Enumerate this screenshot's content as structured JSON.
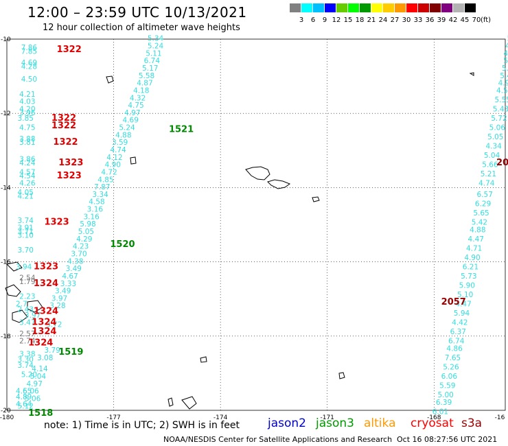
{
  "title": "12:00 – 23:59 UTC 10/13/2021",
  "subtitle": "12 hour collection of altimeter wave heights",
  "legend": {
    "labels": [
      "3",
      "6",
      "9",
      "12",
      "15",
      "18",
      "21",
      "24",
      "27",
      "30",
      "33",
      "36",
      "39",
      "42",
      "45",
      "70"
    ],
    "unit": "(ft)",
    "colors": [
      "#808080",
      "#00ffff",
      "#00bfff",
      "#0000ff",
      "#66cc00",
      "#00ff00",
      "#009900",
      "#ffff00",
      "#ffcc00",
      "#ff9900",
      "#ff0000",
      "#cc0000",
      "#800000",
      "#800080",
      "#b3b3b3",
      "#000000"
    ]
  },
  "axes": {
    "lon_labels": [
      "-180",
      "-177",
      "-174",
      "-171",
      "-168",
      "-16"
    ],
    "lat_labels": [
      "-10",
      "-12",
      "-14",
      "-16",
      "-18",
      "-20"
    ]
  },
  "note": "note:  1) Time is in UTC; 2) SWH is in feet",
  "satellites": [
    {
      "name": "jason2",
      "color": "#0000cc"
    },
    {
      "name": "jason3",
      "color": "#009900"
    },
    {
      "name": "altika",
      "color": "#ff9900"
    },
    {
      "name": "cryosat",
      "color": "#ff0000"
    },
    {
      "name": "s3a",
      "color": "#990000"
    }
  ],
  "footer_left": "NOAA/NESDIS Center for Satellite Applications and Research",
  "footer_right": "Oct 16 08:27:56 UTC 2021",
  "track_colors": {
    "swh": "#33dddd",
    "swh_gray": "#777777",
    "s3a": "#e00000",
    "jason3": "#008800",
    "s3a_dark": "#990000"
  },
  "pass_labels": [
    {
      "text": "1322",
      "color": "s3a",
      "lon": -178.6,
      "lat": -10.35
    },
    {
      "text": "1322",
      "color": "s3a",
      "lon": -178.75,
      "lat": -12.2
    },
    {
      "text": "1322",
      "color": "s3a",
      "lon": -178.75,
      "lat": -12.4
    },
    {
      "text": "1322",
      "color": "s3a",
      "lon": -178.7,
      "lat": -12.85
    },
    {
      "text": "1323",
      "color": "s3a",
      "lon": -178.55,
      "lat": -13.4
    },
    {
      "text": "1323",
      "color": "s3a",
      "lon": -178.6,
      "lat": -13.75
    },
    {
      "text": "1323",
      "color": "s3a",
      "lon": -178.95,
      "lat": -15.0
    },
    {
      "text": "1323",
      "color": "s3a",
      "lon": -179.25,
      "lat": -16.2
    },
    {
      "text": "1324",
      "color": "s3a",
      "lon": -179.25,
      "lat": -16.65
    },
    {
      "text": "1324",
      "color": "s3a",
      "lon": -179.25,
      "lat": -17.4
    },
    {
      "text": "1324",
      "color": "s3a",
      "lon": -179.3,
      "lat": -17.7
    },
    {
      "text": "1324",
      "color": "s3a",
      "lon": -179.3,
      "lat": -17.95
    },
    {
      "text": "1324",
      "color": "s3a",
      "lon": -179.4,
      "lat": -18.25
    },
    {
      "text": "1521",
      "color": "jason3",
      "lon": -175.45,
      "lat": -12.5
    },
    {
      "text": "1520",
      "color": "jason3",
      "lon": -177.1,
      "lat": -15.6
    },
    {
      "text": "1519",
      "color": "jason3",
      "lon": -178.55,
      "lat": -18.5
    },
    {
      "text": "1518",
      "color": "jason3",
      "lon": -179.4,
      "lat": -20.15
    },
    {
      "text": "2057",
      "color": "s3a_dark",
      "lon": -167.8,
      "lat": -17.15
    },
    {
      "text": "20",
      "color": "s3a_dark",
      "lon": -166.25,
      "lat": -13.4
    }
  ],
  "swh_tracks": [
    {
      "name": "jason3-pass-1521",
      "values": [
        {
          "v": "5.34",
          "lon": -176.05,
          "lat": -10.05
        },
        {
          "v": "5.24",
          "lon": -176.05,
          "lat": -10.25
        },
        {
          "v": "5.11",
          "lon": -176.1,
          "lat": -10.45
        },
        {
          "v": "6.74",
          "lon": -176.15,
          "lat": -10.65
        },
        {
          "v": "5.17",
          "lon": -176.2,
          "lat": -10.85
        },
        {
          "v": "5.58",
          "lon": -176.3,
          "lat": -11.05
        },
        {
          "v": "4.87",
          "lon": -176.35,
          "lat": -11.25
        },
        {
          "v": "4.18",
          "lon": -176.45,
          "lat": -11.45
        },
        {
          "v": "4.32",
          "lon": -176.55,
          "lat": -11.65
        },
        {
          "v": "4.75",
          "lon": -176.6,
          "lat": -11.85
        },
        {
          "v": "4.97",
          "lon": -176.7,
          "lat": -12.05
        },
        {
          "v": "4.69",
          "lon": -176.75,
          "lat": -12.25
        },
        {
          "v": "5.24",
          "lon": -176.85,
          "lat": -12.45
        },
        {
          "v": "4.88",
          "lon": -176.95,
          "lat": -12.65
        },
        {
          "v": "3.59",
          "lon": -177.05,
          "lat": -12.85
        },
        {
          "v": "4.74",
          "lon": -177.1,
          "lat": -13.05
        },
        {
          "v": "4.12",
          "lon": -177.2,
          "lat": -13.25
        },
        {
          "v": "4.90",
          "lon": -177.25,
          "lat": -13.45
        },
        {
          "v": "4.72",
          "lon": -177.35,
          "lat": -13.65
        },
        {
          "v": "4.85",
          "lon": -177.45,
          "lat": -13.85
        },
        {
          "v": "7.87",
          "lon": -177.55,
          "lat": -14.05
        },
        {
          "v": "3.34",
          "lon": -177.6,
          "lat": -14.25
        },
        {
          "v": "4.58",
          "lon": -177.7,
          "lat": -14.45
        },
        {
          "v": "3.16",
          "lon": -177.75,
          "lat": -14.65
        },
        {
          "v": "3.16",
          "lon": -177.85,
          "lat": -14.85
        }
      ]
    },
    {
      "name": "jason3-pass-1520",
      "values": [
        {
          "v": "5.98",
          "lon": -177.95,
          "lat": -15.05
        },
        {
          "v": "5.05",
          "lon": -178.0,
          "lat": -15.25
        },
        {
          "v": "4.29",
          "lon": -178.05,
          "lat": -15.45
        },
        {
          "v": "4.23",
          "lon": -178.15,
          "lat": -15.65
        },
        {
          "v": "3.70",
          "lon": -178.2,
          "lat": -15.85
        },
        {
          "v": "4.38",
          "lon": -178.3,
          "lat": -16.05
        },
        {
          "v": "3.49",
          "lon": -178.35,
          "lat": -16.25
        },
        {
          "v": "4.67",
          "lon": -178.45,
          "lat": -16.45
        },
        {
          "v": "3.33",
          "lon": -178.5,
          "lat": -16.65
        },
        {
          "v": "3.49",
          "lon": -178.65,
          "lat": -16.85
        },
        {
          "v": "3.97",
          "lon": -178.75,
          "lat": -17.05
        }
      ]
    },
    {
      "name": "jason3-pass-1519",
      "values": [
        {
          "v": "3.28",
          "lon": -178.8,
          "lat": -17.25
        },
        {
          "v": "3.72",
          "lon": -178.9,
          "lat": -17.75
        },
        {
          "v": "3.79",
          "lon": -178.95,
          "lat": -18.45
        },
        {
          "v": "3.08",
          "lon": -179.15,
          "lat": -18.65
        },
        {
          "v": "4.14",
          "lon": -179.3,
          "lat": -18.95
        },
        {
          "v": "5.04",
          "lon": -179.35,
          "lat": -19.15
        },
        {
          "v": "4.97",
          "lon": -179.45,
          "lat": -19.35
        },
        {
          "v": "5.06",
          "lon": -179.55,
          "lat": -19.55
        },
        {
          "v": "5.06",
          "lon": -179.5,
          "lat": -19.75
        },
        {
          "v": "5.12",
          "lon": -179.7,
          "lat": -19.95
        }
      ]
    },
    {
      "name": "s3a-pass-1322",
      "values": [
        {
          "v": "7.86",
          "lon": -179.6,
          "lat": -10.3
        },
        {
          "v": "7.85",
          "lon": -179.6,
          "lat": -10.4
        },
        {
          "v": "4.69",
          "lon": -179.6,
          "lat": -10.7
        },
        {
          "v": "4.28",
          "lon": -179.6,
          "lat": -10.8
        },
        {
          "v": "4.50",
          "lon": -179.6,
          "lat": -11.15
        },
        {
          "v": "4.21",
          "lon": -179.65,
          "lat": -11.55
        },
        {
          "v": "4.03",
          "lon": -179.65,
          "lat": -11.75
        },
        {
          "v": "4.20",
          "lon": -179.65,
          "lat": -11.95
        },
        {
          "v": "3.96",
          "lon": -179.65,
          "lat": -12.05
        },
        {
          "v": "3.85",
          "lon": -179.7,
          "lat": -12.2
        },
        {
          "v": "4.75",
          "lon": -179.65,
          "lat": -12.45
        },
        {
          "v": "3.88",
          "lon": -179.65,
          "lat": -12.75
        },
        {
          "v": "3.81",
          "lon": -179.65,
          "lat": -12.85
        }
      ]
    },
    {
      "name": "s3a-pass-1323",
      "values": [
        {
          "v": "3.86",
          "lon": -179.65,
          "lat": -13.3
        },
        {
          "v": "4.24",
          "lon": -179.65,
          "lat": -13.4
        },
        {
          "v": "4.57",
          "lon": -179.65,
          "lat": -13.65
        },
        {
          "v": "4.54",
          "lon": -179.65,
          "lat": -13.75
        },
        {
          "v": "4.26",
          "lon": -179.65,
          "lat": -13.95
        },
        {
          "v": "4.05",
          "lon": -179.7,
          "lat": -14.2
        },
        {
          "v": "4.21",
          "lon": -179.7,
          "lat": -14.3
        },
        {
          "v": "3.74",
          "lon": -179.7,
          "lat": -14.95
        },
        {
          "v": "3.91",
          "lon": -179.7,
          "lat": -15.15
        },
        {
          "v": "3.71",
          "lon": -179.7,
          "lat": -15.25
        },
        {
          "v": "3.10",
          "lon": -179.7,
          "lat": -15.35
        },
        {
          "v": "3.70",
          "lon": -179.7,
          "lat": -15.75
        },
        {
          "v": "3.94",
          "lon": -179.75,
          "lat": -16.2
        }
      ]
    },
    {
      "name": "s3a-pass-1324",
      "values": [
        {
          "v": "2.23",
          "lon": -179.65,
          "lat": -17.0
        },
        {
          "v": "2.7",
          "lon": -179.75,
          "lat": -17.2
        },
        {
          "v": "2.43",
          "lon": -179.7,
          "lat": -17.35
        },
        {
          "v": "3.47",
          "lon": -179.65,
          "lat": -17.7
        },
        {
          "v": "3.97",
          "lon": -179.5,
          "lat": -17.5
        },
        {
          "v": "3.38",
          "lon": -179.65,
          "lat": -18.55
        },
        {
          "v": "3.30",
          "lon": -179.7,
          "lat": -18.7
        },
        {
          "v": "3.74",
          "lon": -179.7,
          "lat": -18.85
        },
        {
          "v": "5.20",
          "lon": -179.6,
          "lat": -19.1
        },
        {
          "v": "4.65",
          "lon": -179.75,
          "lat": -19.55
        },
        {
          "v": "4.89",
          "lon": -179.75,
          "lat": -19.7
        },
        {
          "v": "4.64",
          "lon": -179.75,
          "lat": -19.9
        }
      ]
    },
    {
      "name": "s3a-pass-2057",
      "values": [
        {
          "v": "5.4",
          "lon": -165.95,
          "lat": -10.05
        },
        {
          "v": "4.7",
          "lon": -166.0,
          "lat": -10.25
        },
        {
          "v": "4.5",
          "lon": -166.05,
          "lat": -10.45
        },
        {
          "v": "5.16",
          "lon": -166.05,
          "lat": -10.65
        },
        {
          "v": "5.12",
          "lon": -166.1,
          "lat": -10.85
        },
        {
          "v": "5.47",
          "lon": -166.15,
          "lat": -11.05
        },
        {
          "v": "4.90",
          "lon": -166.2,
          "lat": -11.25
        },
        {
          "v": "4.58",
          "lon": -166.25,
          "lat": -11.45
        },
        {
          "v": "5.55",
          "lon": -166.3,
          "lat": -11.7
        },
        {
          "v": "5.43",
          "lon": -166.35,
          "lat": -11.95
        },
        {
          "v": "5.72",
          "lon": -166.4,
          "lat": -12.2
        },
        {
          "v": "5.06",
          "lon": -166.45,
          "lat": -12.45
        },
        {
          "v": "5.05",
          "lon": -166.5,
          "lat": -12.7
        },
        {
          "v": "4.34",
          "lon": -166.55,
          "lat": -12.95
        },
        {
          "v": "5.04",
          "lon": -166.6,
          "lat": -13.2
        },
        {
          "v": "5.66",
          "lon": -166.65,
          "lat": -13.45
        },
        {
          "v": "5.21",
          "lon": -166.7,
          "lat": -13.7
        },
        {
          "v": "4.74",
          "lon": -166.75,
          "lat": -13.95
        },
        {
          "v": "6.57",
          "lon": -166.8,
          "lat": -14.25
        },
        {
          "v": "6.29",
          "lon": -166.85,
          "lat": -14.5
        },
        {
          "v": "5.65",
          "lon": -166.9,
          "lat": -14.75
        },
        {
          "v": "5.42",
          "lon": -166.95,
          "lat": -15.0
        },
        {
          "v": "4.88",
          "lon": -167.0,
          "lat": -15.2
        },
        {
          "v": "4.47",
          "lon": -167.05,
          "lat": -15.45
        },
        {
          "v": "4.71",
          "lon": -167.1,
          "lat": -15.7
        },
        {
          "v": "4.90",
          "lon": -167.15,
          "lat": -15.95
        },
        {
          "v": "6.21",
          "lon": -167.2,
          "lat": -16.2
        },
        {
          "v": "5.73",
          "lon": -167.25,
          "lat": -16.45
        },
        {
          "v": "5.90",
          "lon": -167.3,
          "lat": -16.7
        },
        {
          "v": "5.10",
          "lon": -167.35,
          "lat": -16.95
        },
        {
          "v": "4.47",
          "lon": -167.4,
          "lat": -17.2
        },
        {
          "v": "5.94",
          "lon": -167.45,
          "lat": -17.45
        },
        {
          "v": "4.42",
          "lon": -167.5,
          "lat": -17.7
        },
        {
          "v": "6.37",
          "lon": -167.55,
          "lat": -17.95
        },
        {
          "v": "6.74",
          "lon": -167.6,
          "lat": -18.2
        },
        {
          "v": "4.86",
          "lon": -167.65,
          "lat": -18.4
        },
        {
          "v": "7.65",
          "lon": -167.7,
          "lat": -18.65
        },
        {
          "v": "5.26",
          "lon": -167.75,
          "lat": -18.9
        },
        {
          "v": "6.06",
          "lon": -167.8,
          "lat": -19.15
        },
        {
          "v": "5.59",
          "lon": -167.85,
          "lat": -19.4
        },
        {
          "v": "5.00",
          "lon": -167.9,
          "lat": -19.65
        },
        {
          "v": "6.39",
          "lon": -167.95,
          "lat": -19.85
        },
        {
          "v": "6.01",
          "lon": -168.05,
          "lat": -20.1
        }
      ]
    }
  ],
  "gray_values": [
    {
      "v": "2.54",
      "lon": -179.65,
      "lat": -16.5
    },
    {
      "v": "1.79",
      "lon": -179.65,
      "lat": -16.6
    },
    {
      "v": "2.74",
      "lon": -179.65,
      "lat": -18.2
    },
    {
      "v": "2.57",
      "lon": -179.65,
      "lat": -18.0
    }
  ]
}
